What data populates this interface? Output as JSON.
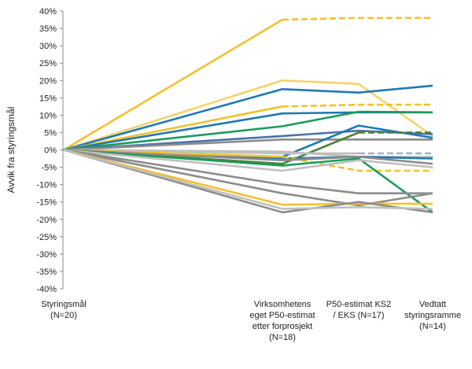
{
  "chart_data": {
    "type": "line",
    "title": "",
    "xlabel": "",
    "ylabel": "Avvik fra styringsmål",
    "ylim": [
      -0.4,
      0.4
    ],
    "ytick_step": 0.05,
    "grid": false,
    "legend": "none",
    "categories": [
      [
        "Styringsmål",
        "(N=20)"
      ],
      [
        "Virksomhetens",
        "eget P50-estimat",
        "etter forprosjekt",
        "(N=18)"
      ],
      [
        "P50-estimat KS2",
        "/ EKS (N=17)"
      ],
      [
        "Vedtatt",
        "styringsramme",
        "(N=14)"
      ]
    ],
    "colors": {
      "yellow": "#f2c12e",
      "light_yellow": "#f5d36c",
      "blue": "#1f78b4",
      "steel": "#4a73a6",
      "green": "#1a9a5a",
      "dark_green": "#4f7f3a",
      "gray": "#8c8c8c",
      "light_gray": "#bfbfbf",
      "blue_gray": "#a3b4c7"
    },
    "series": [
      {
        "color": "yellow",
        "dashed": false,
        "values": [
          0,
          0.375,
          null,
          null
        ]
      },
      {
        "color": "yellow",
        "dashed": true,
        "values": [
          null,
          0.375,
          0.38,
          0.38
        ]
      },
      {
        "color": "light_yellow",
        "dashed": false,
        "values": [
          0,
          0.2,
          0.19,
          0.04
        ]
      },
      {
        "color": "blue",
        "dashed": false,
        "values": [
          0,
          0.175,
          0.165,
          0.185
        ]
      },
      {
        "color": "yellow",
        "dashed": false,
        "values": [
          0,
          0.125,
          null,
          null
        ]
      },
      {
        "color": "yellow",
        "dashed": true,
        "values": [
          null,
          0.125,
          0.13,
          0.13
        ]
      },
      {
        "color": "blue",
        "dashed": false,
        "values": [
          0,
          0.105,
          0.108,
          0.108
        ]
      },
      {
        "color": "green",
        "dashed": false,
        "values": [
          0,
          0.068,
          0.11,
          0.108
        ]
      },
      {
        "color": "steel",
        "dashed": false,
        "values": [
          0,
          0.04,
          0.055,
          0.045
        ]
      },
      {
        "color": "gray",
        "dashed": false,
        "values": [
          0,
          0.03,
          0.03,
          0.03
        ]
      },
      {
        "color": "blue",
        "dashed": false,
        "values": [
          0,
          -0.02,
          0.07,
          0.035
        ]
      },
      {
        "color": "dark_green",
        "dashed": false,
        "values": [
          0,
          -0.04,
          0.05,
          null
        ]
      },
      {
        "color": "dark_green",
        "dashed": true,
        "values": [
          null,
          null,
          0.05,
          0.05
        ]
      },
      {
        "color": "light_gray",
        "dashed": false,
        "values": [
          0,
          -0.01,
          -0.01,
          null
        ]
      },
      {
        "color": "blue_gray",
        "dashed": true,
        "values": [
          null,
          null,
          -0.01,
          -0.01
        ]
      },
      {
        "color": "gray",
        "dashed": true,
        "values": [
          null,
          null,
          0.03,
          0.03
        ]
      },
      {
        "color": "light_gray",
        "dashed": false,
        "values": [
          0,
          -0.005,
          -0.02,
          -0.02
        ]
      },
      {
        "color": "blue",
        "dashed": false,
        "values": [
          0,
          -0.025,
          -0.02,
          -0.025
        ]
      },
      {
        "color": "yellow",
        "dashed": false,
        "values": [
          0,
          -0.02,
          null,
          null
        ]
      },
      {
        "color": "yellow",
        "dashed": true,
        "values": [
          null,
          -0.02,
          -0.06,
          -0.06
        ]
      },
      {
        "color": "gray",
        "dashed": false,
        "values": [
          0,
          -0.03,
          -0.02,
          -0.04
        ]
      },
      {
        "color": "green",
        "dashed": false,
        "values": [
          0,
          -0.045,
          -0.025,
          -0.18
        ]
      },
      {
        "color": "light_gray",
        "dashed": false,
        "values": [
          0,
          -0.06,
          -0.03,
          -0.05
        ]
      },
      {
        "color": "gray",
        "dashed": false,
        "values": [
          0,
          -0.1,
          -0.125,
          -0.125
        ]
      },
      {
        "color": "gray",
        "dashed": false,
        "values": [
          0,
          -0.125,
          -0.16,
          -0.125
        ]
      },
      {
        "color": "yellow",
        "dashed": false,
        "values": [
          0,
          -0.158,
          -0.155,
          -0.155
        ]
      },
      {
        "color": "gray",
        "dashed": false,
        "values": [
          0,
          -0.18,
          -0.15,
          -0.18
        ]
      },
      {
        "color": "light_gray",
        "dashed": false,
        "values": [
          0,
          -0.17,
          -0.165,
          -0.17
        ]
      }
    ]
  }
}
